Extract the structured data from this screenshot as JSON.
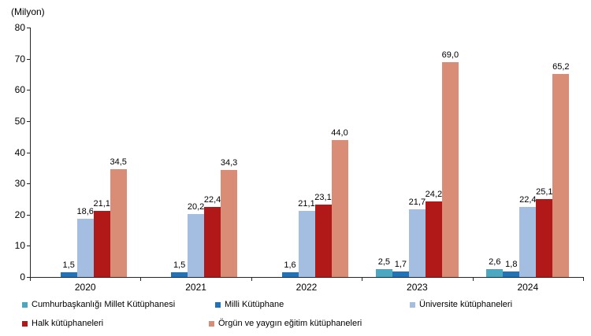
{
  "chart_data": {
    "type": "bar",
    "title": "",
    "unit_label": "(Milyon)",
    "categories": [
      "2020",
      "2021",
      "2022",
      "2023",
      "2024"
    ],
    "series": [
      {
        "name": "Cumhurbaşkanlığı Millet Kütüphanesi",
        "color": "#4BA8C0",
        "values": [
          null,
          null,
          null,
          2.5,
          2.6
        ],
        "labels": [
          null,
          null,
          null,
          "2,5",
          "2,6"
        ]
      },
      {
        "name": "Milli Kütüphane",
        "color": "#2173B9",
        "values": [
          1.5,
          1.5,
          1.6,
          1.7,
          1.8
        ],
        "labels": [
          "1,5",
          "1,5",
          "1,6",
          "1,7",
          "1,8"
        ]
      },
      {
        "name": "Üniversite kütüphaneleri",
        "color": "#A4BEE2",
        "values": [
          18.6,
          20.2,
          21.1,
          21.7,
          22.4
        ],
        "labels": [
          "18,6",
          "20,2",
          "21,1",
          "21,7",
          "22,4"
        ]
      },
      {
        "name": "Halk kütüphaneleri",
        "color": "#B01917",
        "values": [
          21.1,
          22.4,
          23.1,
          24.2,
          25.1
        ],
        "labels": [
          "21,1",
          "22,4",
          "23,1",
          "24,2",
          "25,1"
        ]
      },
      {
        "name": "Örgün ve yaygın eğitim kütüphaneleri",
        "color": "#D98D77",
        "values": [
          34.5,
          34.3,
          44.0,
          69.0,
          65.2
        ],
        "labels": [
          "34,5",
          "34,3",
          "44,0",
          "69,0",
          "65,2"
        ]
      }
    ],
    "ylim": [
      0,
      80
    ],
    "yticks": [
      0,
      10,
      20,
      30,
      40,
      50,
      60,
      70,
      80
    ],
    "grid": false,
    "legend_position": "bottom"
  }
}
